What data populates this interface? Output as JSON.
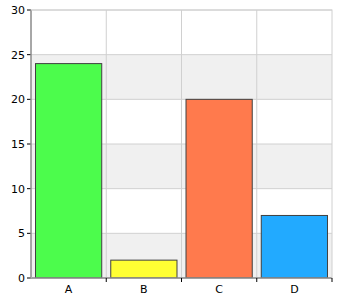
{
  "chart_data": {
    "type": "bar",
    "categories": [
      "A",
      "B",
      "C",
      "D"
    ],
    "values": [
      24,
      2,
      20,
      7
    ],
    "colors": [
      "#4cfc4c",
      "#ffff33",
      "#ff7a4d",
      "#22aaff"
    ],
    "ylim": [
      0,
      30
    ],
    "yticks": [
      0,
      5,
      10,
      15,
      20,
      25,
      30
    ],
    "grid": true
  }
}
